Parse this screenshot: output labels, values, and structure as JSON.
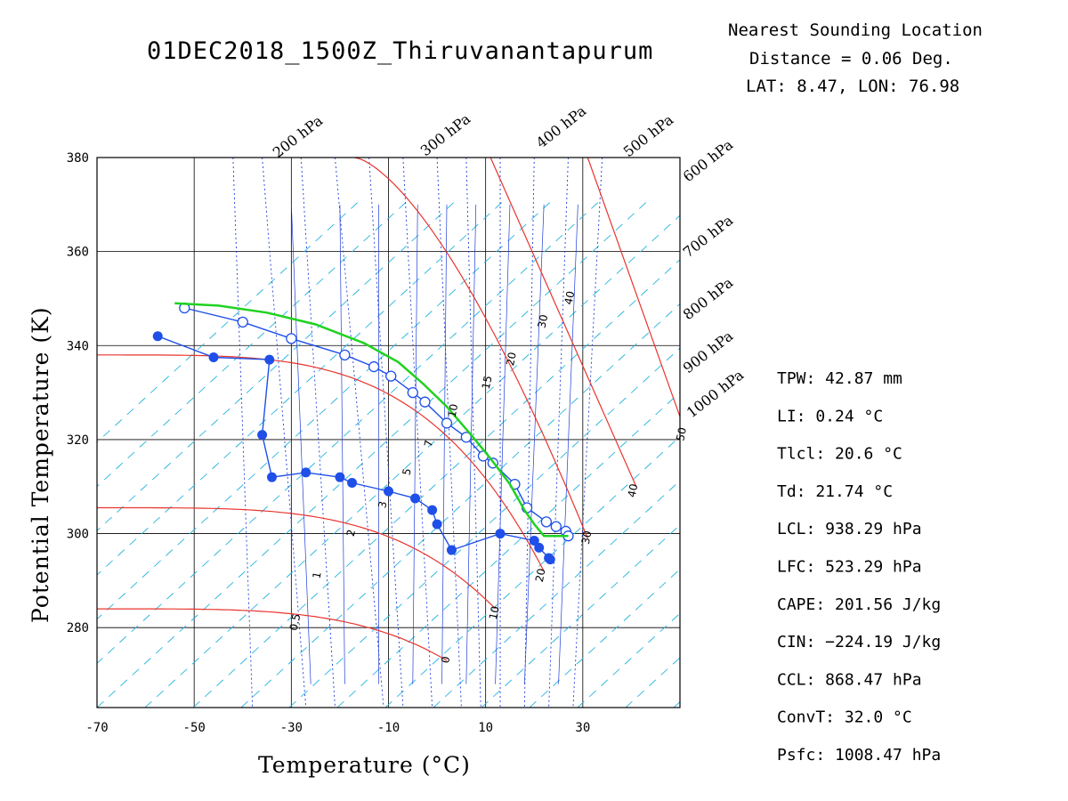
{
  "title": "01DEC2018_1500Z_Thiruvanantapurum",
  "location": {
    "heading": "Nearest Sounding Location",
    "distance": "Distance =  0.06 Deg.",
    "latlon": "LAT:  8.47, LON: 76.98"
  },
  "stats": [
    "TPW: 42.87 mm",
    "LI:  0.24 °C",
    "Tlcl:    20.6 °C",
    "Td:  21.74 °C",
    "LCL: 938.29 hPa",
    "LFC: 523.29 hPa",
    "CAPE: 201.56 J/kg",
    "CIN: −224.19 J/kg",
    "CCL: 868.47 hPa",
    "ConvT:    32.0 °C",
    "Psfc: 1008.47 hPa"
  ],
  "colors": {
    "isotherm_red": "#e8342e",
    "mixing_ratio_blue": "#1f3fd8",
    "dry_adiabat_cyan": "#27b4e0",
    "sounding_blue": "#1f4fe8",
    "parcel_green": "#1fd21f"
  },
  "chart_data": {
    "type": "line",
    "xlabel": "Temperature (°C)",
    "ylabel": "Potential Temperature (K)",
    "xlim": [
      -70,
      50
    ],
    "ylim": [
      263,
      380
    ],
    "x_ticks": [
      -70,
      -50,
      -30,
      -10,
      10,
      30
    ],
    "y_ticks": [
      280,
      300,
      320,
      340,
      360,
      380
    ],
    "grid": true,
    "pressure_labels": [
      "200 hPa",
      "300 hPa",
      "400 hPa",
      "500 hPa",
      "600 hPa",
      "700 hPa",
      "800 hPa",
      "900 hPa",
      "1000 hPa"
    ],
    "mixing_ratio_labels": [
      {
        "text": "0.5",
        "x": -28.5,
        "y": 281
      },
      {
        "text": "1",
        "x": -24,
        "y": 291
      },
      {
        "text": "2",
        "x": -17,
        "y": 300
      },
      {
        "text": "3",
        "x": -10.5,
        "y": 306
      },
      {
        "text": "5",
        "x": -5.5,
        "y": 313
      },
      {
        "text": "7",
        "x": -1,
        "y": 319
      },
      {
        "text": "10",
        "x": 4,
        "y": 326
      },
      {
        "text": "15",
        "x": 11,
        "y": 332
      },
      {
        "text": "20",
        "x": 16,
        "y": 337
      },
      {
        "text": "30",
        "x": 22.5,
        "y": 345
      },
      {
        "text": "40",
        "x": 28,
        "y": 350
      }
    ],
    "isotherm_labels": [
      {
        "text": "0",
        "x": 2.5,
        "y": 273
      },
      {
        "text": "10",
        "x": 12.5,
        "y": 283
      },
      {
        "text": "20",
        "x": 22,
        "y": 291
      },
      {
        "text": "30",
        "x": 31.5,
        "y": 299
      },
      {
        "text": "40",
        "x": 41,
        "y": 309
      },
      {
        "text": "50",
        "x": 51,
        "y": 321
      }
    ],
    "series": [
      {
        "name": "Dew point",
        "marker": "filled-circle",
        "x": [
          -57.5,
          -46,
          -34.5,
          -36,
          -34,
          -27,
          -20,
          -17.5,
          -10,
          -4.5,
          -1,
          0,
          3,
          13,
          20,
          21,
          23,
          23.3
        ],
        "y": [
          342,
          337.5,
          337,
          321,
          312,
          313,
          312,
          310.8,
          309,
          307.5,
          305,
          302,
          296.5,
          300,
          298.5,
          297,
          294.8,
          294.5
        ]
      },
      {
        "name": "Temperature",
        "marker": "open-circle",
        "x": [
          -52,
          -40,
          -30,
          -19,
          -13,
          -9.5,
          -5,
          -2.5,
          2,
          6,
          9.5,
          11.5,
          16,
          18.5,
          22.5,
          24.5,
          26.5,
          27
        ],
        "y": [
          348,
          345,
          341.5,
          338,
          335.5,
          333.5,
          330,
          328,
          323.5,
          320.5,
          316.5,
          315,
          310.5,
          305.5,
          302.5,
          301.5,
          300.5,
          299.5
        ]
      },
      {
        "name": "Parcel",
        "marker": "none",
        "x": [
          -54,
          -45,
          -35,
          -25,
          -15,
          -8,
          -3,
          2,
          7,
          11,
          15,
          18,
          20,
          22,
          27
        ],
        "y": [
          349,
          348.5,
          347,
          344.5,
          340.5,
          336.5,
          332,
          327,
          321,
          316,
          310.5,
          305,
          302,
          299.5,
          299.5
        ]
      }
    ]
  }
}
